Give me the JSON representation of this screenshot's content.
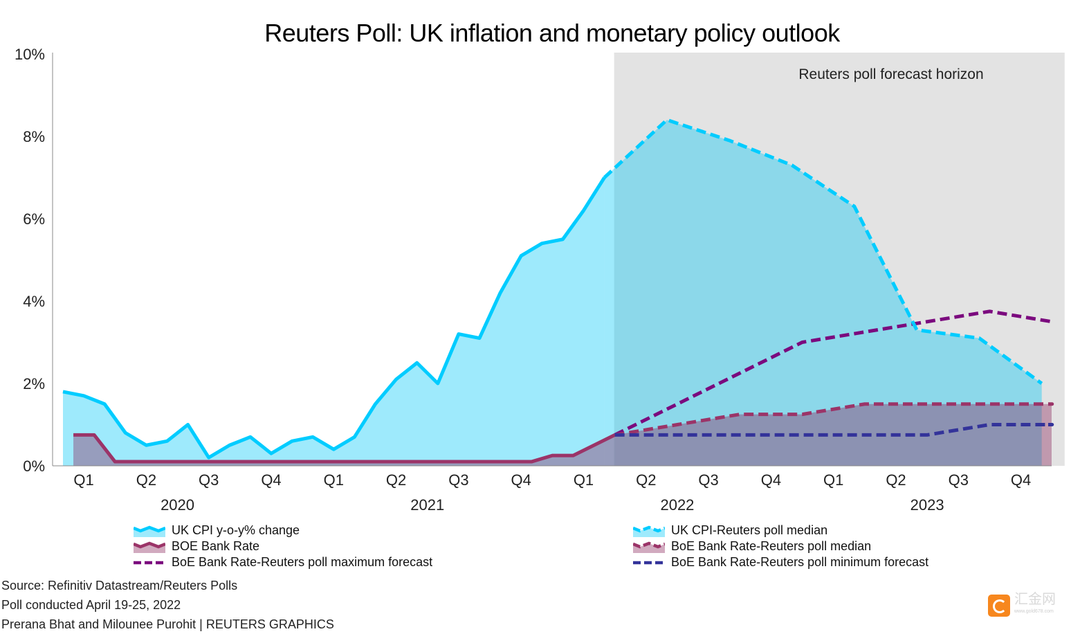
{
  "chart_data": {
    "type": "area",
    "title": "Reuters Poll: UK inflation and monetary policy outlook",
    "y_axis": {
      "min": 0,
      "max": 10,
      "ticks": [
        "0%",
        "2%",
        "4%",
        "6%",
        "8%",
        "10%"
      ],
      "tick_values": [
        0,
        2,
        4,
        6,
        8,
        10
      ],
      "grid": false
    },
    "x_axis": {
      "quarters": [
        "Q1",
        "Q2",
        "Q3",
        "Q4",
        "Q1",
        "Q2",
        "Q3",
        "Q4",
        "Q1",
        "Q2",
        "Q3",
        "Q4",
        "Q1",
        "Q2",
        "Q3",
        "Q4"
      ],
      "years": [
        "2020",
        "2021",
        "2022",
        "2023"
      ]
    },
    "forecast_horizon": {
      "label": "Reuters poll forecast horizon",
      "start": "2022-03-15",
      "end": "2023-12-31",
      "color": "#e3e3e3"
    },
    "series": [
      {
        "name": "UK CPI y-o-y% change",
        "color": "#00ccff",
        "style": "solid-area",
        "start": "2020-01",
        "values": [
          1.8,
          1.7,
          1.5,
          0.8,
          0.5,
          0.6,
          1.0,
          0.2,
          0.5,
          0.7,
          0.3,
          0.6,
          0.7,
          0.4,
          0.7,
          1.5,
          2.1,
          2.5,
          2.0,
          3.2,
          3.1,
          4.2,
          5.1,
          5.4,
          5.5,
          6.2,
          7.0
        ]
      },
      {
        "name": "BOE Bank Rate",
        "color": "#9b3468",
        "style": "solid-area",
        "start": "2020-01",
        "values": [
          0.75,
          0.75,
          0.1,
          0.1,
          0.1,
          0.1,
          0.1,
          0.1,
          0.1,
          0.1,
          0.1,
          0.1,
          0.1,
          0.1,
          0.1,
          0.1,
          0.1,
          0.1,
          0.1,
          0.1,
          0.1,
          0.1,
          0.1,
          0.25,
          0.25,
          0.5,
          0.75
        ]
      },
      {
        "name": "BoE Bank Rate-Reuters poll maximum forecast",
        "color": "#7b0a7e",
        "style": "dashed",
        "points": [
          [
            "2022-03",
            0.75
          ],
          [
            "2022-06",
            1.5
          ],
          [
            "2022-09",
            2.25
          ],
          [
            "2022-12",
            3.0
          ],
          [
            "2023-03",
            3.25
          ],
          [
            "2023-06",
            3.5
          ],
          [
            "2023-09",
            3.75
          ],
          [
            "2023-12",
            3.5
          ]
        ]
      },
      {
        "name": "UK CPI-Reuters poll median",
        "color": "#00ccff",
        "style": "dashed-area",
        "points": [
          [
            "2022-03",
            7.0
          ],
          [
            "2022-06",
            8.4
          ],
          [
            "2022-09",
            7.9
          ],
          [
            "2022-12",
            7.3
          ],
          [
            "2023-03",
            6.3
          ],
          [
            "2023-06",
            3.3
          ],
          [
            "2023-09",
            3.1
          ],
          [
            "2023-12",
            2.0
          ]
        ]
      },
      {
        "name": "BoE Bank Rate-Reuters poll median",
        "color": "#9b3468",
        "style": "dashed-area",
        "points": [
          [
            "2022-03",
            0.75
          ],
          [
            "2022-06",
            1.0
          ],
          [
            "2022-09",
            1.25
          ],
          [
            "2022-12",
            1.25
          ],
          [
            "2023-03",
            1.5
          ],
          [
            "2023-06",
            1.5
          ],
          [
            "2023-09",
            1.5
          ],
          [
            "2023-12",
            1.5
          ]
        ]
      },
      {
        "name": "BoE Bank Rate-Reuters poll minimum forecast",
        "color": "#33339a",
        "style": "dashed",
        "points": [
          [
            "2022-03",
            0.75
          ],
          [
            "2022-06",
            0.75
          ],
          [
            "2022-09",
            0.75
          ],
          [
            "2022-12",
            0.75
          ],
          [
            "2023-03",
            0.75
          ],
          [
            "2023-06",
            0.75
          ],
          [
            "2023-09",
            1.0
          ],
          [
            "2023-12",
            1.0
          ]
        ]
      }
    ]
  },
  "legend": {
    "left": [
      "UK CPI y-o-y% change",
      "BOE Bank Rate",
      "BoE Bank Rate-Reuters poll maximum forecast"
    ],
    "right": [
      "UK CPI-Reuters poll median",
      "BoE Bank Rate-Reuters poll median",
      "BoE Bank Rate-Reuters poll minimum forecast"
    ]
  },
  "footer": {
    "source": "Source: Refinitiv Datastream/Reuters Polls",
    "poll": "Poll conducted April 19-25, 2022",
    "credit": "Prerana Bhat and Milounee Purohit | REUTERS GRAPHICS"
  },
  "watermark": {
    "name": "汇金网",
    "url": "www.gold678.com"
  }
}
